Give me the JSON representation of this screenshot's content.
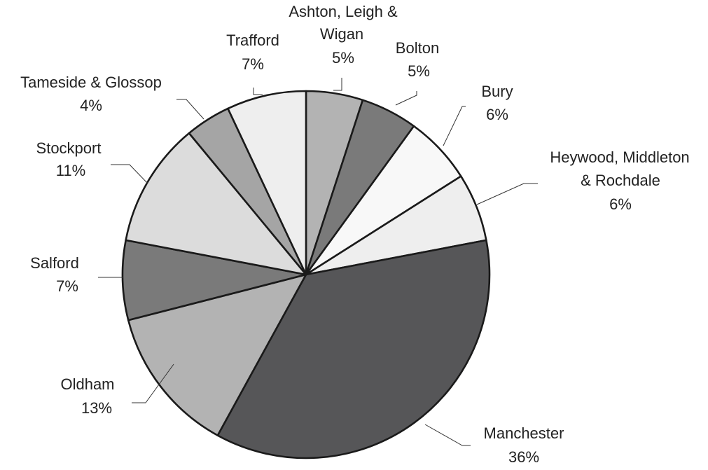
{
  "chart_data": {
    "type": "pie",
    "title": "",
    "slices": [
      {
        "label": "Ashton, Leigh & Wigan",
        "value_label": "5%",
        "value": 5,
        "color": "#b3b3b3"
      },
      {
        "label": "Bolton",
        "value_label": "5%",
        "value": 5,
        "color": "#7a7a7a"
      },
      {
        "label": "Bury",
        "value_label": "6%",
        "value": 6,
        "color": "#f8f8f8"
      },
      {
        "label": "Heywood, Middleton & Rochdale",
        "value_label": "6%",
        "value": 6,
        "color": "#eeeeee"
      },
      {
        "label": "Manchester",
        "value_label": "36%",
        "value": 36,
        "color": "#565658"
      },
      {
        "label": "Oldham",
        "value_label": "13%",
        "value": 13,
        "color": "#b3b3b3"
      },
      {
        "label": "Salford",
        "value_label": "7%",
        "value": 7,
        "color": "#7a7a7a"
      },
      {
        "label": "Stockport",
        "value_label": "11%",
        "value": 11,
        "color": "#dcdcdc"
      },
      {
        "label": "Tameside & Glossop",
        "value_label": "4%",
        "value": 4,
        "color": "#a5a5a5"
      },
      {
        "label": "Trafford",
        "value_label": "7%",
        "value": 7,
        "color": "#eeeeee"
      }
    ]
  }
}
